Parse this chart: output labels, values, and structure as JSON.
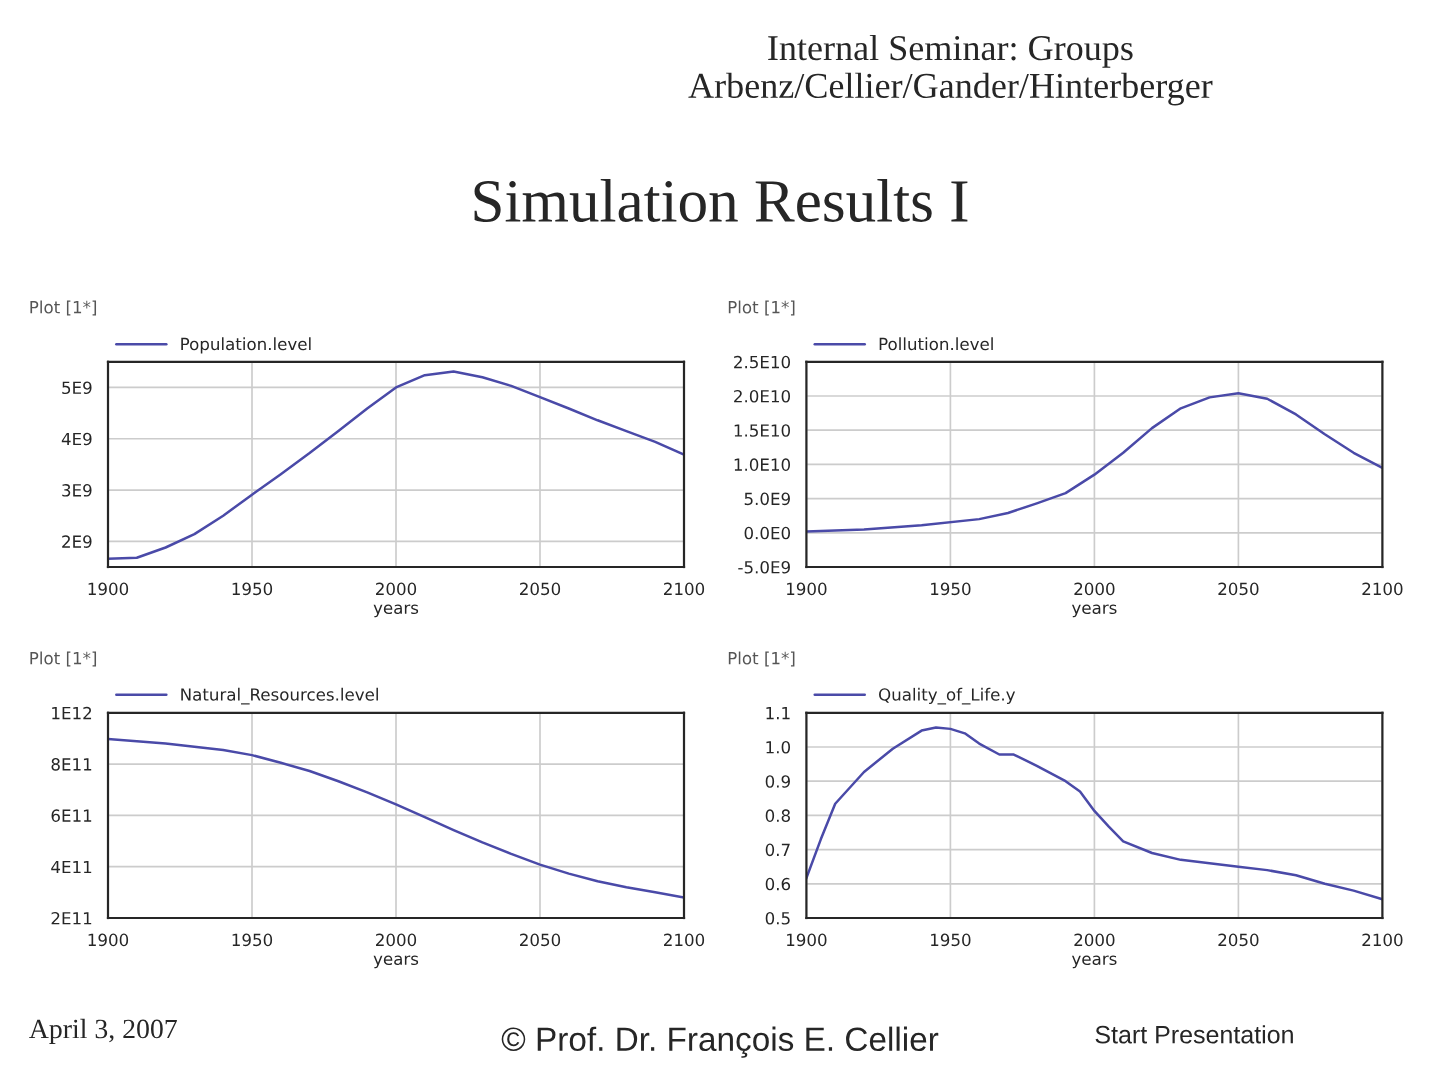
{
  "chart_data": [
    {
      "type": "line",
      "title": "Simulation Results I",
      "xlabel": "years",
      "annotations": [
        "Internal Seminar: Groups\nArbenz/Cellier/Gander/Hinterberger",
        "April 3, 2007",
        "© Prof. Dr. François E. Cellier",
        "Start Presentation",
        "Plot [1*]"
      ],
      "x": [
        1900,
        1910,
        1920,
        1930,
        1940,
        1950,
        1960,
        1970,
        1980,
        1990,
        2000,
        2010,
        2020,
        2030,
        2040,
        2050,
        2060,
        2070,
        2080,
        2090,
        2100
      ],
      "series": [
        {
          "name": "Population.level",
          "color": "#4a4aa8",
          "values": [
            1660000000.0,
            1680000000.0,
            1880000000.0,
            2140000000.0,
            2500000000.0,
            2910000000.0,
            3310000000.0,
            3720000000.0,
            4150000000.0,
            4590000000.0,
            5000000000.0,
            5240000000.0,
            5310000000.0,
            5200000000.0,
            5030000000.0,
            4810000000.0,
            4590000000.0,
            4360000000.0,
            4150000000.0,
            3940000000.0,
            3690000000.0
          ]
        }
      ],
      "xlim": [
        1900,
        2100
      ],
      "xticks": [
        1900,
        1950,
        2000,
        2050,
        2100
      ],
      "ylim": [
        1500000000.0,
        5500000000.0
      ],
      "yticks": [
        {
          "value": 2000000000.0,
          "label": "2E9"
        },
        {
          "value": 3000000000.0,
          "label": "3E9"
        },
        {
          "value": 4000000000.0,
          "label": "4E9"
        },
        {
          "value": 5000000000.0,
          "label": "5E9"
        }
      ],
      "grid": true,
      "legend": "top left",
      "marker": "none",
      "line_style": "solid"
    },
    {
      "type": "line",
      "xlabel": "years",
      "annotations": [
        "Plot [1*]"
      ],
      "x": [
        1900,
        1920,
        1940,
        1960,
        1970,
        1980,
        1990,
        2000,
        2010,
        2020,
        2030,
        2040,
        2050,
        2060,
        2070,
        2080,
        2090,
        2100
      ],
      "series": [
        {
          "name": "Pollution.level",
          "color": "#4a4aa8",
          "values": [
            200000000.0,
            500000000.0,
            1100000000.0,
            2000000000.0,
            2900000000.0,
            4300000000.0,
            5800000000.0,
            8500000000.0,
            11700000000.0,
            15300000000.0,
            18200000000.0,
            19800000000.0,
            20400000000.0,
            19600000000.0,
            17300000000.0,
            14400000000.0,
            11700000000.0,
            9500000000.0
          ]
        }
      ],
      "xlim": [
        1900,
        2100
      ],
      "xticks": [
        1900,
        1950,
        2000,
        2050,
        2100
      ],
      "ylim": [
        -5000000000.0,
        25000000000.0
      ],
      "yticks": [
        {
          "value": -5000000000.0,
          "label": "-5.0E9"
        },
        {
          "value": 0,
          "label": "0.0E0"
        },
        {
          "value": 5000000000.0,
          "label": "5.0E9"
        },
        {
          "value": 10000000000.0,
          "label": "1.0E10"
        },
        {
          "value": 15000000000.0,
          "label": "1.5E10"
        },
        {
          "value": 20000000000.0,
          "label": "2.0E10"
        },
        {
          "value": 25000000000.0,
          "label": "2.5E10"
        }
      ],
      "grid": true,
      "legend": "top left",
      "marker": "none",
      "line_style": "solid"
    },
    {
      "type": "line",
      "xlabel": "years",
      "annotations": [
        "Plot [1*]"
      ],
      "x": [
        1900,
        1920,
        1940,
        1950,
        1960,
        1970,
        1980,
        1990,
        2000,
        2010,
        2020,
        2030,
        2040,
        2050,
        2060,
        2070,
        2080,
        2090,
        2100
      ],
      "series": [
        {
          "name": "Natural_Resources.level",
          "color": "#4a4aa8",
          "values": [
            898000000000.0,
            880000000000.0,
            855000000000.0,
            835000000000.0,
            805000000000.0,
            773000000000.0,
            733000000000.0,
            690000000000.0,
            643000000000.0,
            593000000000.0,
            543000000000.0,
            495000000000.0,
            450000000000.0,
            408000000000.0,
            373000000000.0,
            343000000000.0,
            320000000000.0,
            300000000000.0,
            280000000000.0
          ]
        }
      ],
      "xlim": [
        1900,
        2100
      ],
      "xticks": [
        1900,
        1950,
        2000,
        2050,
        2100
      ],
      "ylim": [
        200000000000.0,
        1000000000000.0
      ],
      "yticks": [
        {
          "value": 200000000000.0,
          "label": "2E11"
        },
        {
          "value": 400000000000.0,
          "label": "4E11"
        },
        {
          "value": 600000000000.0,
          "label": "6E11"
        },
        {
          "value": 800000000000.0,
          "label": "8E11"
        },
        {
          "value": 1000000000000.0,
          "label": "1E12"
        }
      ],
      "grid": true,
      "legend": "top left",
      "marker": "none",
      "line_style": "solid"
    },
    {
      "type": "line",
      "xlabel": "years",
      "annotations": [
        "Plot [1*]"
      ],
      "x": [
        1900,
        1905,
        1910,
        1920,
        1930,
        1940,
        1945,
        1950,
        1955,
        1960,
        1967,
        1972,
        1980,
        1990,
        1995,
        2000,
        2005,
        2010,
        2020,
        2030,
        2040,
        2050,
        2060,
        2070,
        2080,
        2090,
        2100
      ],
      "series": [
        {
          "name": "Quality_of_Life.y",
          "color": "#4a4aa8",
          "values": [
            0.617,
            0.73,
            0.834,
            0.927,
            0.995,
            1.048,
            1.057,
            1.053,
            1.04,
            1.01,
            0.978,
            0.978,
            0.945,
            0.9,
            0.87,
            0.813,
            0.767,
            0.724,
            0.69,
            0.67,
            0.66,
            0.65,
            0.64,
            0.625,
            0.6,
            0.58,
            0.555
          ]
        }
      ],
      "xlim": [
        1900,
        2100
      ],
      "xticks": [
        1900,
        1950,
        2000,
        2050,
        2100
      ],
      "ylim": [
        0.5,
        1.1
      ],
      "yticks": [
        0.5,
        0.6,
        0.7,
        0.8,
        0.9,
        {
          "value": 1.0,
          "label": "1.0"
        },
        1.1
      ],
      "grid": true,
      "legend": "top left",
      "marker": "none",
      "line_style": "solid"
    }
  ]
}
